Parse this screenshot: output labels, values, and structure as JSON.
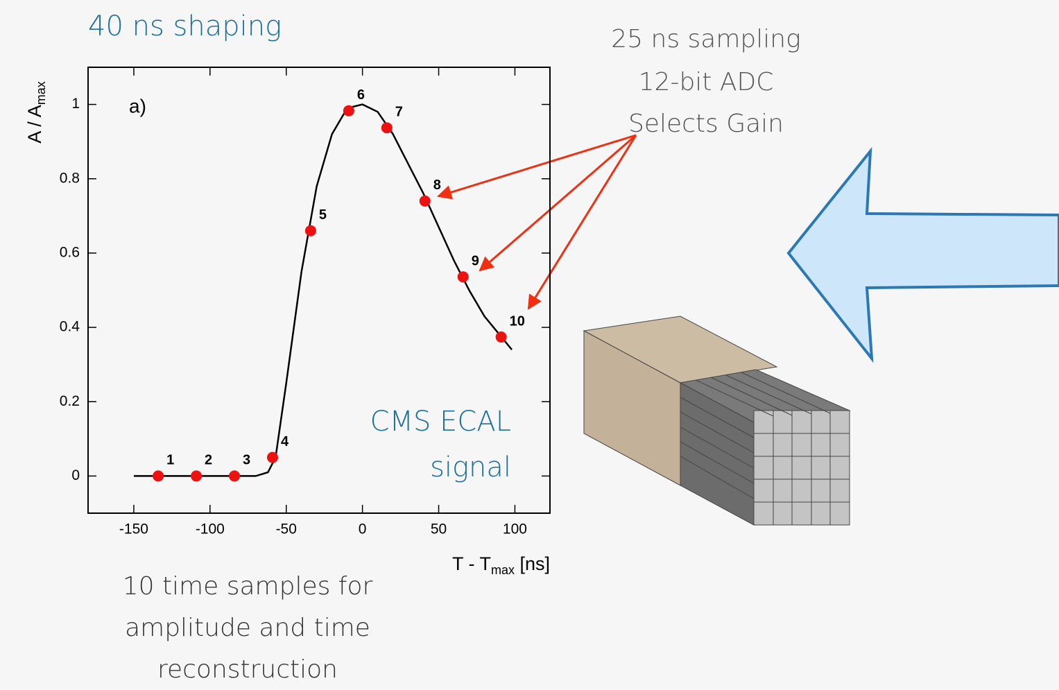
{
  "slide": {
    "title": "40 ns shaping",
    "specs": [
      "25 ns sampling",
      "12-bit ADC",
      "Selects Gain"
    ],
    "caption": [
      "10 time samples for",
      "amplitude and time",
      "reconstruction"
    ]
  },
  "chart_data": {
    "type": "line",
    "annotation": "a)",
    "signal_label": [
      "CMS ECAL",
      "signal"
    ],
    "xlabel": [
      "T - T",
      "max",
      " [ns]"
    ],
    "ylabel": [
      "A / A",
      "max"
    ],
    "xlim": [
      -180,
      123
    ],
    "ylim": [
      -0.1,
      1.1
    ],
    "xticks": [
      -150,
      -100,
      -50,
      0,
      50,
      100
    ],
    "yticks": [
      0,
      0.2,
      0.4,
      0.6,
      0.8,
      1
    ],
    "series": [
      {
        "style": "line",
        "color": "#000000",
        "x": [
          -150,
          -70,
          -62,
          -57,
          -50,
          -40,
          -30,
          -20,
          -10,
          0,
          10,
          20,
          30,
          40,
          50,
          60,
          70,
          80,
          90,
          98
        ],
        "values": [
          0,
          0,
          0.01,
          0.05,
          0.25,
          0.55,
          0.78,
          0.92,
          0.99,
          1.0,
          0.98,
          0.92,
          0.84,
          0.76,
          0.67,
          0.58,
          0.5,
          0.43,
          0.38,
          0.34
        ]
      },
      {
        "style": "markers",
        "color": "#ee1111",
        "x": [
          -134,
          -109,
          -84,
          -59,
          -34,
          -9,
          16,
          41,
          66,
          91
        ],
        "values": [
          0,
          0,
          0,
          0.05,
          0.66,
          0.983,
          0.937,
          0.74,
          0.536,
          0.374
        ],
        "point_labels": [
          "1",
          "2",
          "3",
          "4",
          "5",
          "6",
          "7",
          "8",
          "9",
          "10"
        ]
      }
    ]
  }
}
